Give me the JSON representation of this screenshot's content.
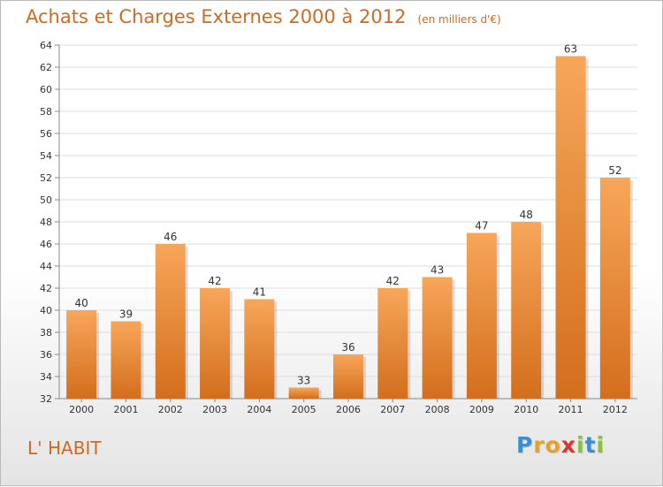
{
  "title": "Achats et Charges Externes 2000 à 2012",
  "subtitle": "(en milliers d'€)",
  "commune": "L' HABIT",
  "logo": {
    "letters": [
      "P",
      "r",
      "o",
      "x",
      "i",
      "t",
      "i"
    ],
    "colors": [
      "#3a8fd0",
      "#e8a02b",
      "#e8a02b",
      "#d8362d",
      "#8cbf3c",
      "#3a8fd0",
      "#8cbf3c"
    ]
  },
  "colors": {
    "accent": "#d2691e",
    "bar_top": "#f7a65a",
    "bar_bottom": "#d36e1c",
    "grid": "#dddddd"
  },
  "chart_data": {
    "type": "bar",
    "categories": [
      "2000",
      "2001",
      "2002",
      "2003",
      "2004",
      "2005",
      "2006",
      "2007",
      "2008",
      "2009",
      "2010",
      "2011",
      "2012"
    ],
    "values": [
      40,
      39,
      46,
      42,
      41,
      33,
      36,
      42,
      43,
      47,
      48,
      63,
      52
    ],
    "ylim": [
      32,
      64
    ],
    "yticks": [
      32,
      34,
      36,
      38,
      40,
      42,
      44,
      46,
      48,
      50,
      52,
      54,
      56,
      58,
      60,
      62,
      64
    ],
    "grid": true,
    "data_labels": true
  }
}
